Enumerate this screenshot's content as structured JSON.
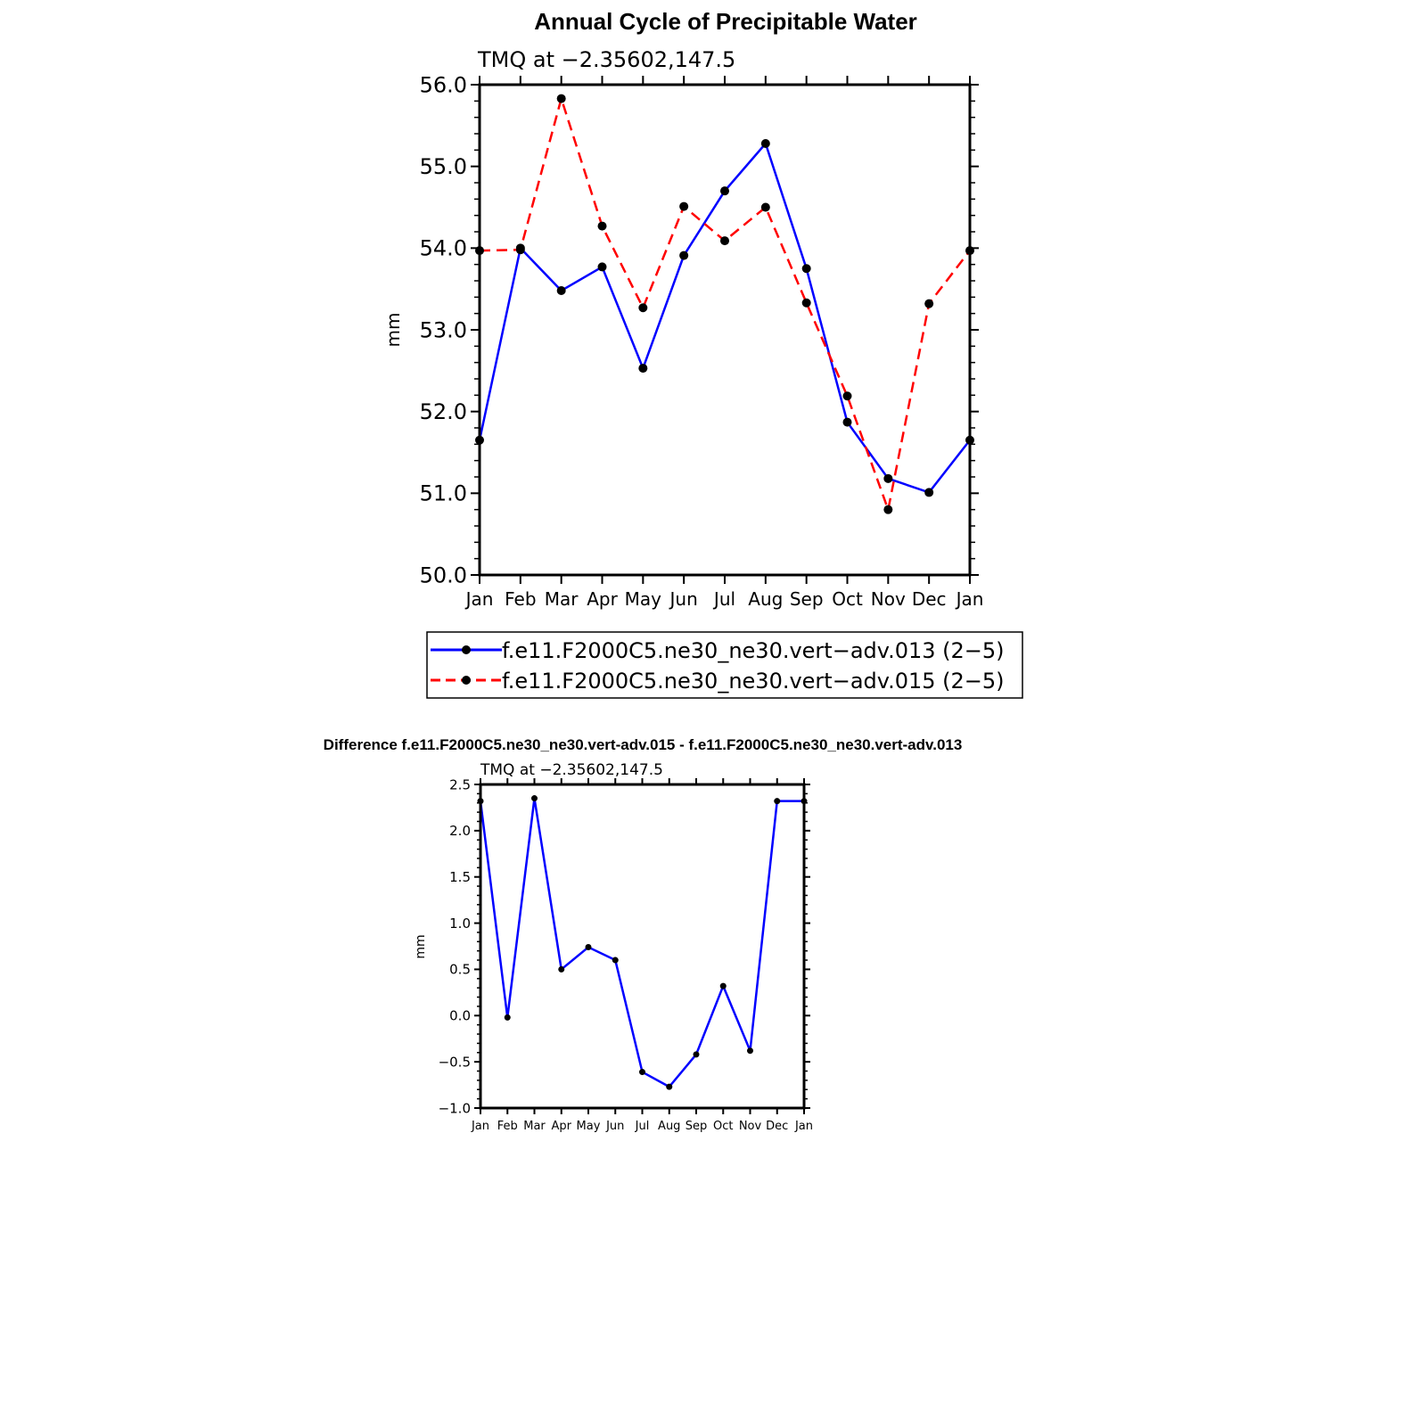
{
  "colors": {
    "series1": "#0000ff",
    "series2": "#ff0000",
    "markers": "#000000",
    "frame": "#000000"
  },
  "chart_data": [
    {
      "type": "line",
      "title": "Annual Cycle of Precipitable Water",
      "subtitle": "TMQ at −2.35602,147.5",
      "ylabel": "mm",
      "xlabel": "",
      "categories": [
        "Jan",
        "Feb",
        "Mar",
        "Apr",
        "May",
        "Jun",
        "Jul",
        "Aug",
        "Sep",
        "Oct",
        "Nov",
        "Dec",
        "Jan"
      ],
      "ylim": [
        50.0,
        56.0
      ],
      "yticks": [
        "50.0",
        "51.0",
        "52.0",
        "53.0",
        "54.0",
        "55.0",
        "56.0"
      ],
      "grid": false,
      "legend_position": "bottom",
      "series": [
        {
          "name": "f.e11.F2000C5.ne30_ne30.vert−adv.013 (2−5)",
          "style": "solid",
          "color": "#0000ff",
          "values": [
            51.65,
            54.0,
            53.48,
            53.77,
            52.53,
            53.91,
            54.7,
            55.28,
            53.75,
            51.87,
            51.18,
            51.01,
            51.65
          ]
        },
        {
          "name": "f.e11.F2000C5.ne30_ne30.vert−adv.015 (2−5)",
          "style": "dashed",
          "color": "#ff0000",
          "values": [
            53.97,
            53.98,
            55.83,
            54.27,
            53.27,
            54.51,
            54.09,
            54.5,
            53.33,
            52.19,
            50.8,
            53.32,
            53.97
          ]
        }
      ]
    },
    {
      "type": "line",
      "title": "Difference f.e11.F2000C5.ne30_ne30.vert-adv.015 - f.e11.F2000C5.ne30_ne30.vert-adv.013",
      "subtitle": "TMQ at −2.35602,147.5",
      "ylabel": "mm",
      "xlabel": "",
      "categories": [
        "Jan",
        "Feb",
        "Mar",
        "Apr",
        "May",
        "Jun",
        "Jul",
        "Aug",
        "Sep",
        "Oct",
        "Nov",
        "Dec",
        "Jan"
      ],
      "ylim": [
        -1.0,
        2.5
      ],
      "yticks": [
        "−1.0",
        "−0.5",
        "0.0",
        "0.5",
        "1.0",
        "1.5",
        "2.0",
        "2.5"
      ],
      "grid": false,
      "series": [
        {
          "name": "",
          "style": "solid",
          "color": "#0000ff",
          "values": [
            2.32,
            -0.02,
            2.35,
            0.5,
            0.74,
            0.6,
            -0.61,
            -0.77,
            -0.42,
            0.32,
            -0.38,
            2.32,
            2.32
          ]
        }
      ]
    }
  ]
}
